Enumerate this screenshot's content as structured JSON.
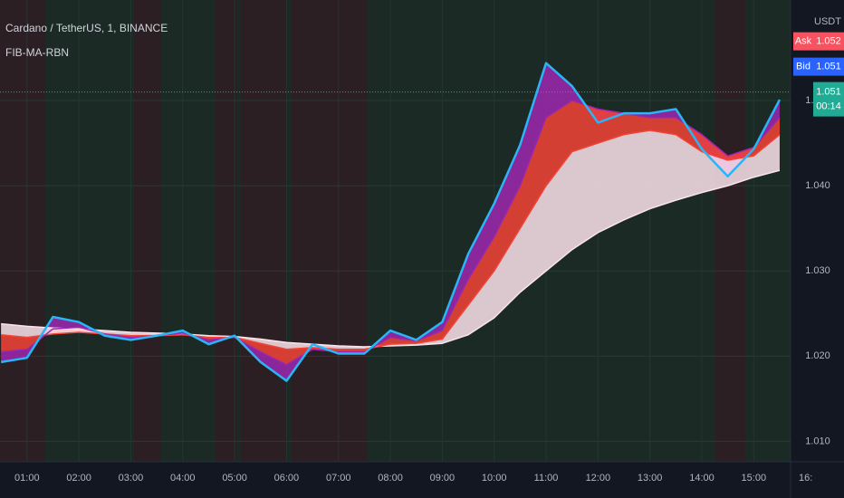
{
  "chart_data": {
    "type": "line",
    "title": "Cardano / TetherUS, 1, BINANCE",
    "subtitle": "FIB-MA-RBN",
    "y_unit": "USDT",
    "x": [
      0.5,
      1,
      1.5,
      2,
      2.5,
      3,
      3.5,
      4,
      4.5,
      5,
      5.5,
      6,
      6.5,
      7,
      7.5,
      8,
      8.5,
      9,
      9.5,
      10,
      10.5,
      11,
      11.5,
      12,
      12.5,
      13,
      13.5,
      14,
      14.5,
      15,
      15.5
    ],
    "series": [
      {
        "color": "#29b6f6",
        "values": [
          1.0193,
          1.0198,
          1.0246,
          1.024,
          1.0224,
          1.0219,
          1.0224,
          1.023,
          1.0214,
          1.0224,
          1.0193,
          1.0171,
          1.0214,
          1.0203,
          1.0203,
          1.023,
          1.0219,
          1.024,
          1.032,
          1.0379,
          1.0448,
          1.0544,
          1.0517,
          1.0474,
          1.0485,
          1.0485,
          1.049,
          1.0443,
          1.0411,
          1.0443,
          1.0501
        ]
      },
      {
        "color": "#9c27b0",
        "values": [
          1.0205,
          1.0208,
          1.0232,
          1.0234,
          1.0226,
          1.0222,
          1.0224,
          1.0227,
          1.0219,
          1.0222,
          1.0205,
          1.019,
          1.0208,
          1.0205,
          1.0205,
          1.0222,
          1.0218,
          1.023,
          1.029,
          1.034,
          1.04,
          1.048,
          1.05,
          1.049,
          1.0485,
          1.048,
          1.048,
          1.046,
          1.0435,
          1.0445,
          1.048
        ]
      },
      {
        "color": "#f44336",
        "values": [
          1.0225,
          1.0222,
          1.0226,
          1.0228,
          1.0226,
          1.0224,
          1.0224,
          1.0225,
          1.0222,
          1.0222,
          1.0215,
          1.0208,
          1.021,
          1.0208,
          1.0208,
          1.0214,
          1.0215,
          1.022,
          1.026,
          1.03,
          1.035,
          1.04,
          1.044,
          1.045,
          1.046,
          1.0465,
          1.046,
          1.044,
          1.043,
          1.0435,
          1.046
        ]
      },
      {
        "color": "#fce4ec",
        "values": [
          1.0238,
          1.0235,
          1.0233,
          1.0232,
          1.023,
          1.0228,
          1.0227,
          1.0226,
          1.0224,
          1.0223,
          1.022,
          1.0216,
          1.0214,
          1.0212,
          1.0211,
          1.0212,
          1.0213,
          1.0215,
          1.0225,
          1.0245,
          1.0275,
          1.03,
          1.0325,
          1.0345,
          1.036,
          1.0373,
          1.0383,
          1.0392,
          1.04,
          1.041,
          1.0418
        ]
      }
    ],
    "xlim": [
      0.48,
      15.71
    ],
    "xticks": [
      {
        "value": 1,
        "label": "01:00"
      },
      {
        "value": 2,
        "label": "02:00"
      },
      {
        "value": 3,
        "label": "03:00"
      },
      {
        "value": 4,
        "label": "04:00"
      },
      {
        "value": 5,
        "label": "05:00"
      },
      {
        "value": 6,
        "label": "06:00"
      },
      {
        "value": 7,
        "label": "07:00"
      },
      {
        "value": 8,
        "label": "08:00"
      },
      {
        "value": 9,
        "label": "09:00"
      },
      {
        "value": 10,
        "label": "10:00"
      },
      {
        "value": 11,
        "label": "11:00"
      },
      {
        "value": 12,
        "label": "12:00"
      },
      {
        "value": 13,
        "label": "13:00"
      },
      {
        "value": 14,
        "label": "14:00"
      },
      {
        "value": 15,
        "label": "15:00"
      },
      {
        "value": 16,
        "label": "16:"
      }
    ],
    "ylim": [
      1.0076,
      1.0618
    ],
    "yticks": [
      {
        "value": 1.01,
        "label": "1.010"
      },
      {
        "value": 1.02,
        "label": "1.020"
      },
      {
        "value": 1.03,
        "label": "1.030"
      },
      {
        "value": 1.04,
        "label": "1.040"
      },
      {
        "value": 1.05,
        "label": "1.050"
      }
    ],
    "price_tags": [
      {
        "label": "Ask",
        "value": 1.052,
        "color": "#f7525f"
      },
      {
        "label": "Bid",
        "value": 1.051,
        "color": "#2962ff"
      },
      {
        "label": "00:14",
        "value": 1.051,
        "color": "#22ab94"
      }
    ],
    "grid": true
  }
}
